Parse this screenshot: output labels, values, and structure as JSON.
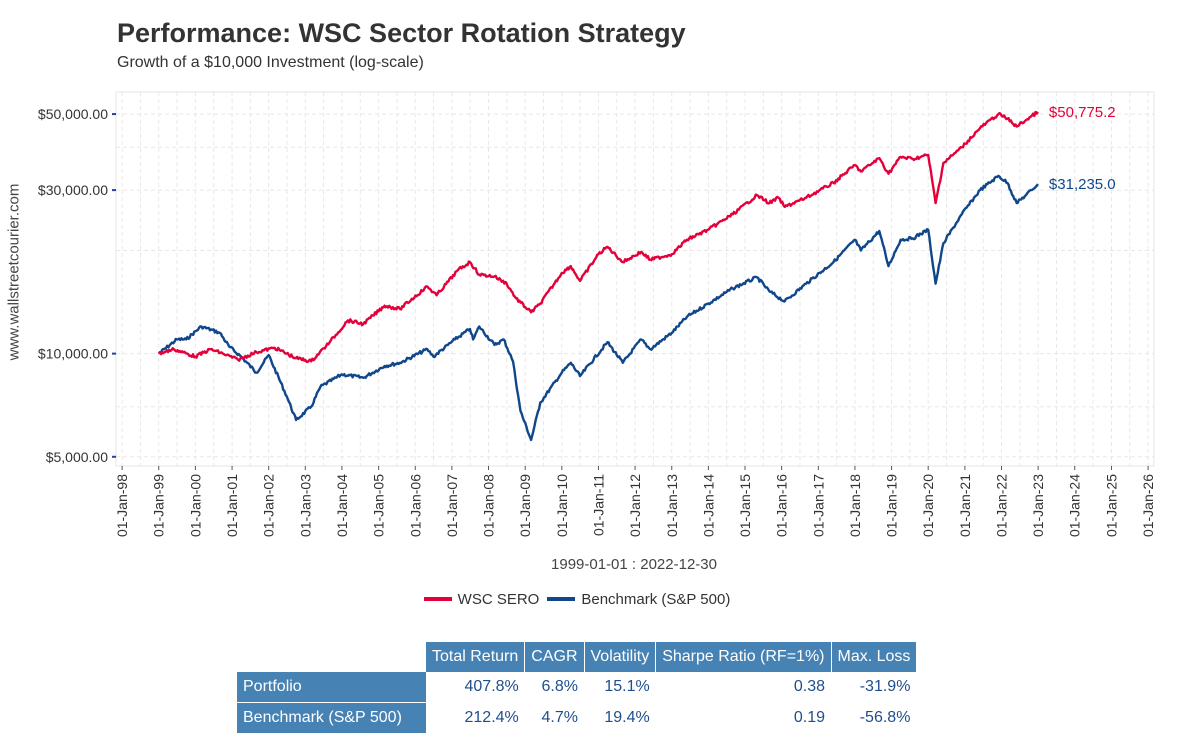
{
  "chart_data": {
    "type": "line",
    "title": "Performance: WSC Sector Rotation Strategy",
    "subtitle": "Growth of a $10,000 Investment (log-scale)",
    "ylabel": "www.wallstreetcourier.com",
    "xlabel": "1999-01-01 : 2022-12-30",
    "y_scale": "log",
    "ylim": [
      4700,
      58000
    ],
    "yticks": [
      5000,
      10000,
      30000,
      50000
    ],
    "ytick_labels": [
      "$5,000.00",
      "$10,000.00",
      "$30,000.00",
      "$50,000.00"
    ],
    "xlim": [
      "1997-11-01",
      "2026-03-01"
    ],
    "xticks": [
      "1998-01-01",
      "1999-01-01",
      "2000-01-01",
      "2001-01-01",
      "2002-01-01",
      "2003-01-01",
      "2004-01-01",
      "2005-01-01",
      "2006-01-01",
      "2007-01-01",
      "2008-01-01",
      "2009-01-01",
      "2010-01-01",
      "2011-01-01",
      "2012-01-01",
      "2013-01-01",
      "2014-01-01",
      "2015-01-01",
      "2016-01-01",
      "2017-01-01",
      "2018-01-01",
      "2019-01-01",
      "2020-01-01",
      "2021-01-01",
      "2022-01-01",
      "2023-01-01",
      "2024-01-01",
      "2025-01-01",
      "2026-01-01"
    ],
    "xtick_labels": [
      "01-Jan-98",
      "01-Jan-99",
      "01-Jan-00",
      "01-Jan-01",
      "01-Jan-02",
      "01-Jan-03",
      "01-Jan-04",
      "01-Jan-05",
      "01-Jan-06",
      "01-Jan-07",
      "01-Jan-08",
      "01-Jan-09",
      "01-Jan-10",
      "01-Jan-11",
      "01-Jan-12",
      "01-Jan-13",
      "01-Jan-14",
      "01-Jan-15",
      "01-Jan-16",
      "01-Jan-17",
      "01-Jan-18",
      "01-Jan-19",
      "01-Jan-20",
      "01-Jan-21",
      "01-Jan-22",
      "01-Jan-23",
      "01-Jan-24",
      "01-Jan-25",
      "01-Jan-26"
    ],
    "grid": true,
    "legend_position": "bottom",
    "series": [
      {
        "name": "WSC SERO",
        "color": "#e4003a",
        "end_label": "$50,775.2",
        "x": [
          "1999-01-01",
          "1999-06-01",
          "2000-01-01",
          "2000-06-01",
          "2000-10-01",
          "2001-03-01",
          "2001-09-01",
          "2002-03-01",
          "2002-10-01",
          "2003-03-01",
          "2003-09-01",
          "2004-03-01",
          "2004-08-01",
          "2005-03-01",
          "2005-08-01",
          "2006-05-01",
          "2006-08-01",
          "2007-03-01",
          "2007-07-01",
          "2007-10-01",
          "2008-03-01",
          "2008-07-01",
          "2008-10-01",
          "2009-03-01",
          "2009-06-01",
          "2010-01-01",
          "2010-04-01",
          "2010-07-01",
          "2011-01-01",
          "2011-04-01",
          "2011-09-01",
          "2012-03-01",
          "2012-06-01",
          "2013-01-01",
          "2013-06-01",
          "2014-01-01",
          "2014-09-01",
          "2015-05-01",
          "2015-09-01",
          "2015-12-01",
          "2016-02-01",
          "2016-09-01",
          "2017-06-01",
          "2018-01-01",
          "2018-03-01",
          "2018-09-01",
          "2018-12-01",
          "2019-04-01",
          "2019-08-01",
          "2020-01-01",
          "2020-03-15",
          "2020-06-01",
          "2020-12-01",
          "2021-06-01",
          "2021-12-01",
          "2022-03-01",
          "2022-06-01",
          "2022-09-01",
          "2022-12-30"
        ],
        "y": [
          10000,
          10300,
          9800,
          10300,
          10000,
          9600,
          10100,
          10400,
          9700,
          9500,
          10800,
          12500,
          12200,
          13800,
          13500,
          15700,
          14800,
          17500,
          18500,
          17000,
          16800,
          16000,
          14500,
          13200,
          14000,
          17200,
          18000,
          16300,
          19500,
          20500,
          18500,
          19800,
          18800,
          19500,
          21500,
          23000,
          25500,
          29000,
          27500,
          28500,
          26800,
          28500,
          31500,
          35500,
          34000,
          37200,
          33500,
          37500,
          37000,
          38000,
          27500,
          36000,
          40000,
          45500,
          50000,
          48500,
          46000,
          48000,
          50775.2
        ]
      },
      {
        "name": "Benchmark (S&P 500)",
        "color": "#10478a",
        "end_label": "$31,235.0",
        "x": [
          "1999-01-01",
          "1999-07-01",
          "1999-10-01",
          "2000-03-01",
          "2000-09-01",
          "2000-12-01",
          "2001-04-01",
          "2001-09-01",
          "2002-01-01",
          "2002-07-01",
          "2002-10-01",
          "2003-03-01",
          "2003-06-01",
          "2004-01-01",
          "2004-08-01",
          "2005-03-01",
          "2005-08-01",
          "2006-05-01",
          "2006-07-01",
          "2007-02-01",
          "2007-07-01",
          "2007-08-01",
          "2007-10-01",
          "2008-03-01",
          "2008-06-01",
          "2008-09-01",
          "2008-11-15",
          "2009-03-01",
          "2009-06-01",
          "2010-01-01",
          "2010-04-01",
          "2010-07-01",
          "2011-04-01",
          "2011-09-01",
          "2012-03-01",
          "2012-06-01",
          "2013-01-01",
          "2013-06-01",
          "2014-01-01",
          "2014-09-01",
          "2015-05-01",
          "2015-09-01",
          "2016-02-01",
          "2016-09-01",
          "2017-06-01",
          "2018-01-01",
          "2018-03-01",
          "2018-09-01",
          "2018-12-01",
          "2019-04-01",
          "2019-08-01",
          "2020-01-01",
          "2020-03-15",
          "2020-06-01",
          "2020-12-01",
          "2021-06-01",
          "2021-12-01",
          "2022-03-01",
          "2022-06-01",
          "2022-09-01",
          "2022-12-30"
        ],
        "y": [
          10000,
          11000,
          11000,
          12000,
          11500,
          10500,
          9800,
          8800,
          9900,
          7500,
          6400,
          7000,
          8000,
          8700,
          8500,
          9200,
          9400,
          10300,
          9800,
          11000,
          11800,
          11000,
          12000,
          10600,
          11000,
          9500,
          6800,
          5600,
          7200,
          8800,
          9400,
          8600,
          10800,
          9400,
          11000,
          10300,
          11500,
          12800,
          14000,
          15500,
          16700,
          15200,
          14200,
          16000,
          18500,
          21500,
          20000,
          22800,
          18000,
          21500,
          21700,
          23000,
          16000,
          21000,
          25500,
          30000,
          33000,
          31500,
          27500,
          29000,
          31235.0
        ]
      }
    ]
  },
  "table": {
    "columns": [
      "Total Return",
      "CAGR",
      "Volatility",
      "Sharpe Ratio (RF=1%)",
      "Max. Loss"
    ],
    "rows": [
      {
        "label": "Portfolio",
        "values": [
          "407.8%",
          "6.8%",
          "15.1%",
          "0.38",
          "-31.9%"
        ]
      },
      {
        "label": "Benchmark (S&P 500)",
        "values": [
          "212.4%",
          "4.7%",
          "19.4%",
          "0.19",
          "-56.8%"
        ]
      }
    ]
  }
}
